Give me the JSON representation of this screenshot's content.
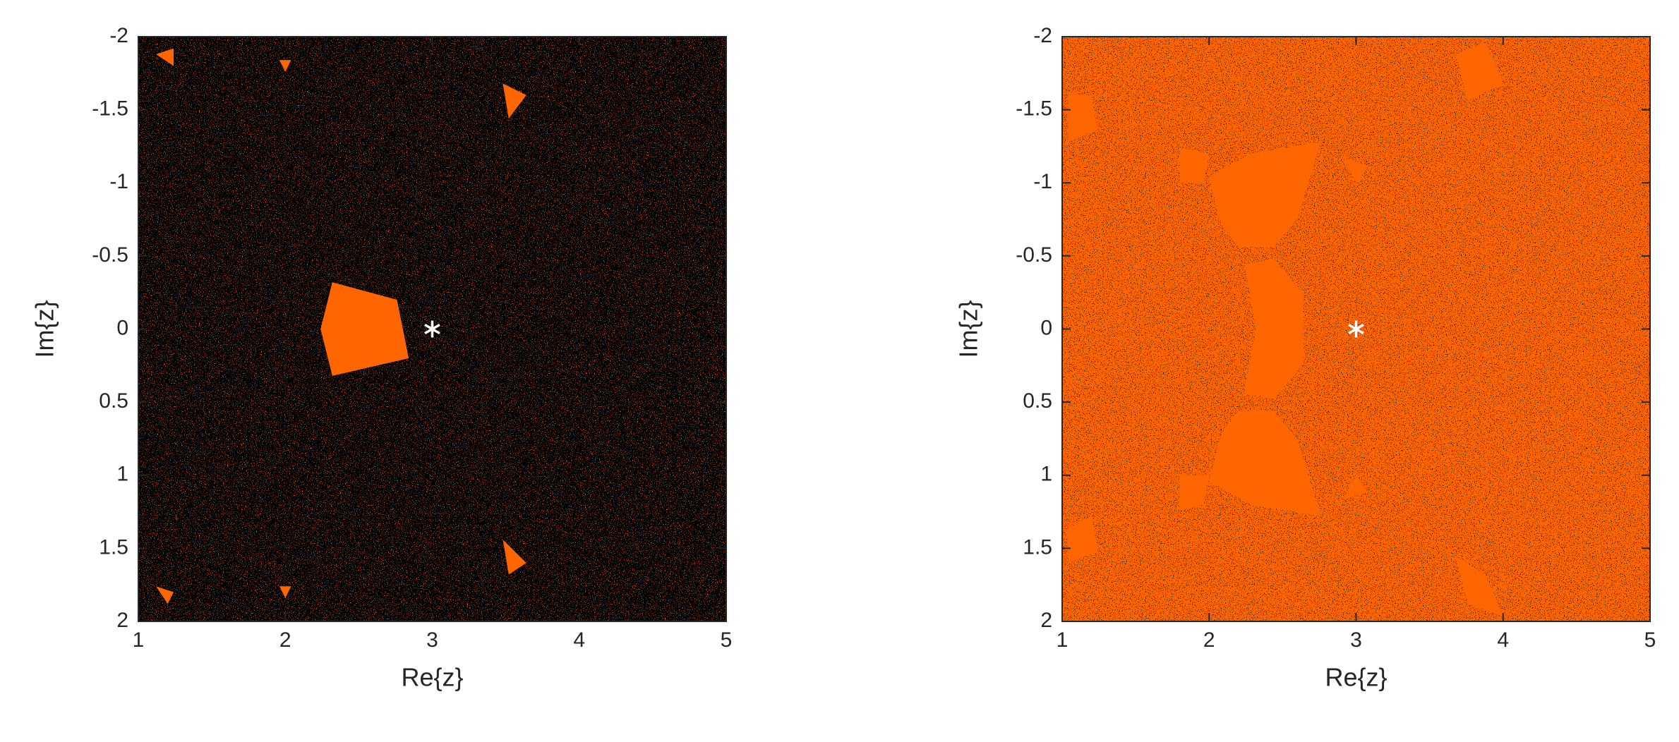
{
  "chart_data": [
    {
      "type": "scatter",
      "xlabel": "Re{z}",
      "ylabel": "Im{z}",
      "xlim": [
        1,
        5
      ],
      "ylim": [
        -2,
        2
      ],
      "y_reversed": true,
      "xticks": [
        1,
        2,
        3,
        4,
        5
      ],
      "yticks": [
        -2,
        -1.5,
        -1,
        -0.5,
        0,
        0.5,
        1,
        1.5,
        2
      ],
      "background_color": "#000000",
      "basin_color": "#ff6600",
      "series": [
        {
          "color": "#ffffff",
          "x": [
            3
          ],
          "y": [
            0
          ]
        }
      ]
    },
    {
      "type": "scatter",
      "xlabel": "Re{z}",
      "ylabel": "Im{z}",
      "xlim": [
        1,
        5
      ],
      "ylim": [
        -2,
        2
      ],
      "y_reversed": true,
      "xticks": [
        1,
        2,
        3,
        4,
        5
      ],
      "yticks": [
        -2,
        -1.5,
        -1,
        -0.5,
        0,
        0.5,
        1,
        1.5,
        2
      ],
      "background_color": "#ff6600",
      "basin_color": "#000000",
      "series": [
        {
          "color": "#ffffff",
          "x": [
            3
          ],
          "y": [
            0
          ]
        }
      ]
    }
  ]
}
